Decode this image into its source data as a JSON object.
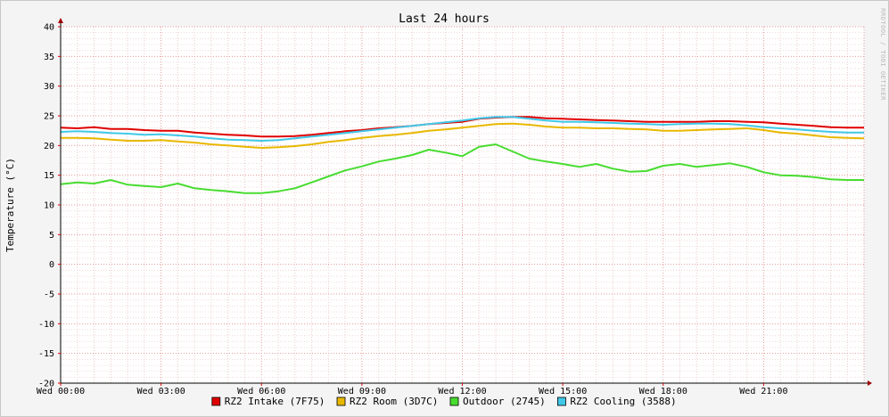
{
  "chart_data": {
    "type": "line",
    "title": "Last 24 hours",
    "ylabel": "Temperature (°C)",
    "watermark": "RRDTOOL / TOBI OETIKER",
    "ylim": [
      -20,
      40
    ],
    "yticks": [
      "40",
      "35",
      "30",
      "25",
      "20",
      "15",
      "10",
      "5",
      "0",
      "-5",
      "-10",
      "-15",
      "-20"
    ],
    "xlim": [
      0,
      24
    ],
    "xticks": [
      {
        "hour": 0,
        "label": "Wed 00:00"
      },
      {
        "hour": 3,
        "label": "Wed 03:00"
      },
      {
        "hour": 6,
        "label": "Wed 06:00"
      },
      {
        "hour": 9,
        "label": "Wed 09:00"
      },
      {
        "hour": 12,
        "label": "Wed 12:00"
      },
      {
        "hour": 15,
        "label": "Wed 15:00"
      },
      {
        "hour": 18,
        "label": "Wed 18:00"
      },
      {
        "hour": 21,
        "label": "Wed 21:00"
      }
    ],
    "grid": true,
    "legend_position": "bottom",
    "series": [
      {
        "name": "RZ2 Intake (7F75)",
        "color": "#e00000",
        "x": [
          0,
          0.5,
          1,
          1.5,
          2,
          2.5,
          3,
          3.5,
          4,
          4.5,
          5,
          5.5,
          6,
          6.5,
          7,
          7.5,
          8,
          8.5,
          9,
          9.5,
          10,
          10.5,
          11,
          11.5,
          12,
          12.5,
          13,
          13.5,
          14,
          14.5,
          15,
          15.5,
          16,
          16.5,
          17,
          17.5,
          18,
          18.5,
          19,
          19.5,
          20,
          20.5,
          21,
          21.5,
          22,
          22.5,
          23,
          23.5,
          24
        ],
        "values": [
          23.0,
          22.9,
          23.1,
          22.8,
          22.8,
          22.6,
          22.5,
          22.5,
          22.2,
          22.0,
          21.8,
          21.7,
          21.5,
          21.5,
          21.6,
          21.8,
          22.1,
          22.4,
          22.6,
          22.9,
          23.1,
          23.3,
          23.6,
          23.8,
          24.0,
          24.5,
          24.7,
          24.8,
          24.8,
          24.6,
          24.5,
          24.4,
          24.3,
          24.2,
          24.1,
          24.0,
          24.0,
          24.0,
          24.0,
          24.1,
          24.1,
          24.0,
          23.9,
          23.7,
          23.5,
          23.3,
          23.1,
          23.0,
          23.0
        ]
      },
      {
        "name": "RZ2 Room (3D7C)",
        "color": "#e8b800",
        "x": [
          0,
          0.5,
          1,
          1.5,
          2,
          2.5,
          3,
          3.5,
          4,
          4.5,
          5,
          5.5,
          6,
          6.5,
          7,
          7.5,
          8,
          8.5,
          9,
          9.5,
          10,
          10.5,
          11,
          11.5,
          12,
          12.5,
          13,
          13.5,
          14,
          14.5,
          15,
          15.5,
          16,
          16.5,
          17,
          17.5,
          18,
          18.5,
          19,
          19.5,
          20,
          20.5,
          21,
          21.5,
          22,
          22.5,
          23,
          23.5,
          24
        ],
        "values": [
          21.3,
          21.3,
          21.2,
          21.0,
          20.8,
          20.8,
          20.9,
          20.7,
          20.5,
          20.2,
          20.0,
          19.8,
          19.6,
          19.7,
          19.9,
          20.2,
          20.6,
          20.9,
          21.3,
          21.6,
          21.8,
          22.1,
          22.5,
          22.7,
          23.0,
          23.3,
          23.6,
          23.7,
          23.5,
          23.2,
          23.0,
          23.0,
          22.9,
          22.9,
          22.8,
          22.7,
          22.5,
          22.5,
          22.6,
          22.7,
          22.8,
          22.9,
          22.6,
          22.2,
          22.0,
          21.7,
          21.4,
          21.3,
          21.2
        ]
      },
      {
        "name": "Outdoor (2745)",
        "color": "#48dc30",
        "x": [
          0,
          0.5,
          1,
          1.5,
          2,
          2.5,
          3,
          3.5,
          4,
          4.5,
          5,
          5.5,
          6,
          6.5,
          7,
          7.5,
          8,
          8.5,
          9,
          9.5,
          10,
          10.5,
          11,
          11.5,
          12,
          12.5,
          13,
          13.5,
          14,
          14.5,
          15,
          15.5,
          16,
          16.5,
          17,
          17.5,
          18,
          18.5,
          19,
          19.5,
          20,
          20.5,
          21,
          21.5,
          22,
          22.5,
          23,
          23.5,
          24
        ],
        "values": [
          13.5,
          13.8,
          13.6,
          14.2,
          13.4,
          13.2,
          13.0,
          13.6,
          12.8,
          12.5,
          12.3,
          12.0,
          12.0,
          12.3,
          12.8,
          13.8,
          14.8,
          15.8,
          16.5,
          17.3,
          17.8,
          18.4,
          19.3,
          18.8,
          18.2,
          19.8,
          20.2,
          19.0,
          17.8,
          17.3,
          16.9,
          16.4,
          16.9,
          16.1,
          15.6,
          15.7,
          16.6,
          16.9,
          16.4,
          16.7,
          17.0,
          16.4,
          15.5,
          15.0,
          14.9,
          14.7,
          14.3,
          14.2,
          14.2
        ]
      },
      {
        "name": "RZ2 Cooling (3588)",
        "color": "#40c8e8",
        "x": [
          0,
          0.5,
          1,
          1.5,
          2,
          2.5,
          3,
          3.5,
          4,
          4.5,
          5,
          5.5,
          6,
          6.5,
          7,
          7.5,
          8,
          8.5,
          9,
          9.5,
          10,
          10.5,
          11,
          11.5,
          12,
          12.5,
          13,
          13.5,
          14,
          14.5,
          15,
          15.5,
          16,
          16.5,
          17,
          17.5,
          18,
          18.5,
          19,
          19.5,
          20,
          20.5,
          21,
          21.5,
          22,
          22.5,
          23,
          23.5,
          24
        ],
        "values": [
          22.3,
          22.4,
          22.3,
          22.1,
          22.0,
          21.8,
          21.9,
          21.7,
          21.5,
          21.2,
          21.0,
          20.9,
          20.8,
          20.9,
          21.2,
          21.5,
          21.8,
          22.1,
          22.4,
          22.7,
          23.0,
          23.3,
          23.6,
          23.9,
          24.2,
          24.6,
          24.8,
          24.8,
          24.5,
          24.2,
          24.0,
          24.0,
          23.9,
          23.8,
          23.7,
          23.6,
          23.5,
          23.6,
          23.7,
          23.7,
          23.6,
          23.4,
          23.1,
          22.9,
          22.7,
          22.5,
          22.3,
          22.2,
          22.2
        ]
      }
    ]
  }
}
